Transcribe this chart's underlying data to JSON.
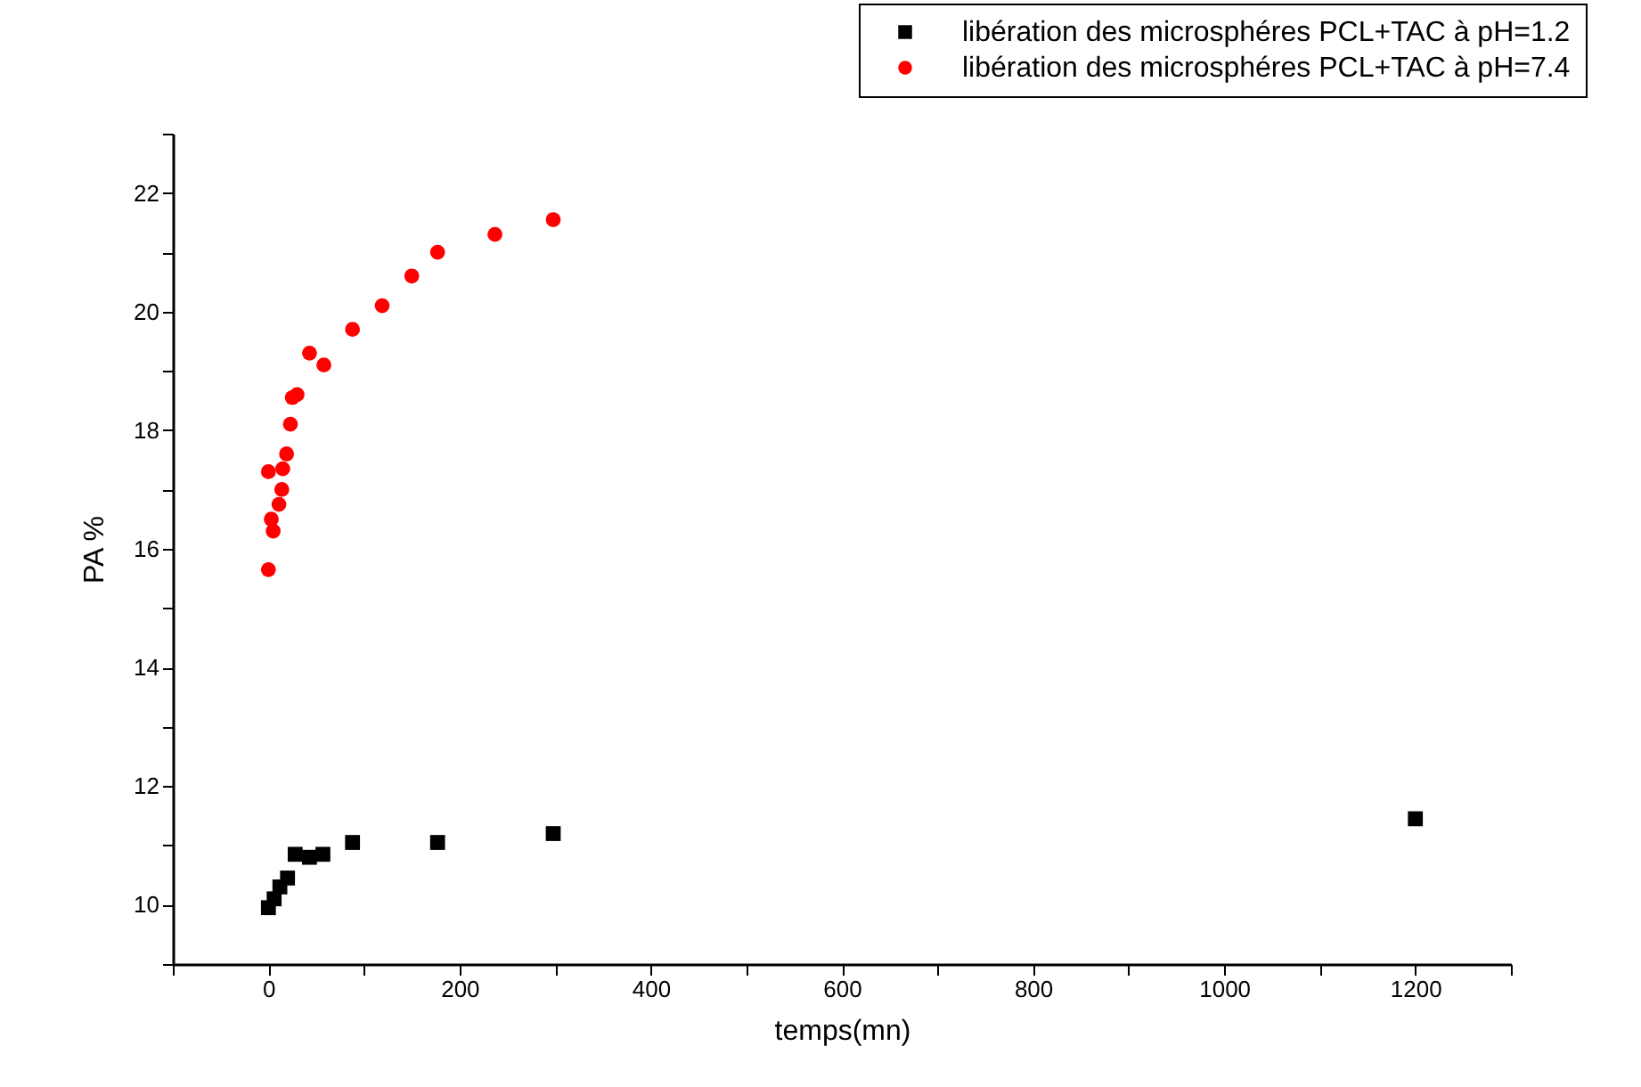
{
  "chart_data": {
    "type": "scatter",
    "xlabel": "temps(mn)",
    "ylabel": "PA %",
    "xlim": [
      -100,
      1300
    ],
    "ylim": [
      9,
      23
    ],
    "xticks": [
      {
        "value": -100,
        "label": null
      },
      0,
      {
        "value": 100,
        "label": null
      },
      200,
      {
        "value": 300,
        "label": null
      },
      400,
      {
        "value": 500,
        "label": null
      },
      600,
      {
        "value": 700,
        "label": null
      },
      800,
      {
        "value": 900,
        "label": null
      },
      1000,
      {
        "value": 1100,
        "label": null
      },
      1200,
      {
        "value": 1300,
        "label": null
      }
    ],
    "yticks": [
      {
        "value": 9,
        "label": null
      },
      10,
      {
        "value": 11,
        "label": null
      },
      12,
      {
        "value": 13,
        "label": null
      },
      14,
      {
        "value": 15,
        "label": null
      },
      16,
      {
        "value": 17,
        "label": null
      },
      18,
      {
        "value": 19,
        "label": null
      },
      20,
      {
        "value": 21,
        "label": null
      },
      22,
      {
        "value": 23,
        "label": null
      }
    ],
    "legend": "top right",
    "grid": false,
    "series": [
      {
        "name": "libération des microsphéres PCL+TAC à pH=1.2",
        "color": "#000000",
        "marker": "square",
        "x": [
          0,
          6,
          12,
          20,
          28,
          43,
          57,
          88,
          177,
          298,
          1200
        ],
        "values": [
          9.95,
          10.1,
          10.3,
          10.45,
          10.85,
          10.8,
          10.85,
          11.05,
          11.05,
          11.2,
          11.45
        ]
      },
      {
        "name": "libération des microsphéres PCL+TAC à pH=7.4",
        "color": "#ff0000",
        "marker": "circle",
        "x": [
          0,
          5,
          3,
          11,
          14,
          0,
          15,
          19,
          23,
          25,
          30,
          43,
          58,
          88,
          119,
          150,
          177,
          237,
          298
        ],
        "values": [
          15.65,
          16.3,
          16.5,
          16.75,
          17.0,
          17.3,
          17.35,
          17.6,
          18.1,
          18.55,
          18.6,
          19.3,
          19.1,
          19.7,
          20.1,
          20.6,
          21.0,
          21.3,
          21.55
        ]
      }
    ]
  }
}
